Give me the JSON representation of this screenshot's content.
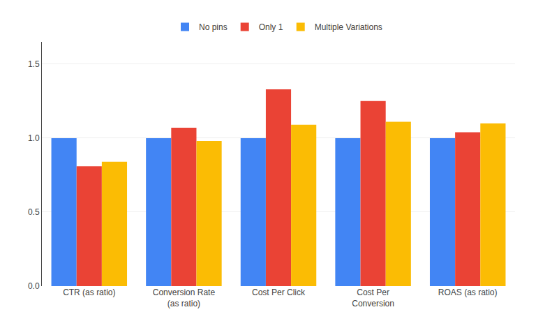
{
  "chart_data": {
    "type": "bar",
    "categories": [
      "CTR (as ratio)",
      "Conversion Rate\n(as ratio)",
      "Cost Per Click",
      "Cost Per\nConversion",
      "ROAS (as ratio)"
    ],
    "series": [
      {
        "name": "No pins",
        "color": "#4285F4",
        "values": [
          1.0,
          1.0,
          1.0,
          1.0,
          1.0
        ]
      },
      {
        "name": "Only 1",
        "color": "#EA4335",
        "values": [
          0.81,
          1.07,
          1.33,
          1.25,
          1.04
        ]
      },
      {
        "name": "Multiple Variations",
        "color": "#FBBC04",
        "values": [
          0.84,
          0.98,
          1.09,
          1.11,
          1.1
        ]
      }
    ],
    "ylim": [
      0.0,
      1.65
    ],
    "yticks": [
      {
        "value": 0.0,
        "label": "0.0"
      },
      {
        "value": 0.5,
        "label": "0.5"
      },
      {
        "value": 1.0,
        "label": "1.0"
      },
      {
        "value": 1.5,
        "label": "1.5"
      }
    ],
    "grid": true,
    "legend": "top"
  }
}
